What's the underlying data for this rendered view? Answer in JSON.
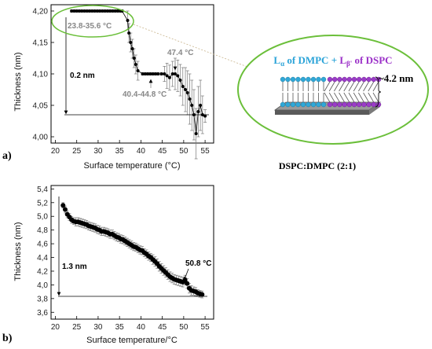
{
  "panel_labels": {
    "a": "a)",
    "b": "b)"
  },
  "inset": {
    "title_parts": {
      "p1": "L",
      "p1_sub": "α",
      "p2": " of DMPC + ",
      "p3": "L",
      "p3_sub": "β'",
      "p4": " of DSPC"
    },
    "thickness_label": "~4.2 nm",
    "caption": "DSPC:DMPC (2:1)",
    "colors": {
      "dmpc": "#2fa8d8",
      "dspc": "#9b3cc8",
      "circle": "#6bbf3a",
      "title_blue": "#2aa3d8",
      "title_purple": "#9b30c8"
    }
  },
  "chart_data": [
    {
      "type": "scatter",
      "xlabel": "Surface temperature (°C)",
      "ylabel": "Thickness (nm)",
      "xlim": [
        19,
        57
      ],
      "ylim": [
        3.99,
        4.21
      ],
      "xticks": [
        20,
        25,
        30,
        35,
        40,
        45,
        50,
        55
      ],
      "yticks": [
        4.0,
        4.05,
        4.1,
        4.15,
        4.2
      ],
      "ytick_labels": [
        "4,00",
        "4,05",
        "4,10",
        "4,15",
        "4,20"
      ],
      "grid": false,
      "points": [
        {
          "x": 23.8,
          "y": 4.2,
          "e": 0.002
        },
        {
          "x": 24.4,
          "y": 4.2,
          "e": 0.002
        },
        {
          "x": 25.0,
          "y": 4.2,
          "e": 0.002
        },
        {
          "x": 25.6,
          "y": 4.2,
          "e": 0.002
        },
        {
          "x": 26.2,
          "y": 4.2,
          "e": 0.002
        },
        {
          "x": 26.8,
          "y": 4.2,
          "e": 0.002
        },
        {
          "x": 27.4,
          "y": 4.2,
          "e": 0.002
        },
        {
          "x": 28.0,
          "y": 4.2,
          "e": 0.002
        },
        {
          "x": 28.6,
          "y": 4.2,
          "e": 0.002
        },
        {
          "x": 29.2,
          "y": 4.2,
          "e": 0.002
        },
        {
          "x": 29.8,
          "y": 4.2,
          "e": 0.002
        },
        {
          "x": 30.4,
          "y": 4.2,
          "e": 0.002
        },
        {
          "x": 31.0,
          "y": 4.2,
          "e": 0.002
        },
        {
          "x": 31.6,
          "y": 4.2,
          "e": 0.002
        },
        {
          "x": 32.2,
          "y": 4.2,
          "e": 0.002
        },
        {
          "x": 32.8,
          "y": 4.2,
          "e": 0.002
        },
        {
          "x": 33.4,
          "y": 4.2,
          "e": 0.002
        },
        {
          "x": 34.0,
          "y": 4.2,
          "e": 0.002
        },
        {
          "x": 34.6,
          "y": 4.2,
          "e": 0.002
        },
        {
          "x": 35.2,
          "y": 4.2,
          "e": 0.002
        },
        {
          "x": 35.6,
          "y": 4.2,
          "e": 0.002
        },
        {
          "x": 36.9,
          "y": 4.185,
          "e": 0.015
        },
        {
          "x": 37.2,
          "y": 4.165,
          "e": 0.015
        },
        {
          "x": 37.6,
          "y": 4.15,
          "e": 0.015
        },
        {
          "x": 38.0,
          "y": 4.14,
          "e": 0.015
        },
        {
          "x": 38.4,
          "y": 4.125,
          "e": 0.015
        },
        {
          "x": 38.8,
          "y": 4.115,
          "e": 0.015
        },
        {
          "x": 39.3,
          "y": 4.105,
          "e": 0.015
        },
        {
          "x": 40.4,
          "y": 4.1,
          "e": 0.002
        },
        {
          "x": 41.0,
          "y": 4.1,
          "e": 0.002
        },
        {
          "x": 41.6,
          "y": 4.1,
          "e": 0.002
        },
        {
          "x": 42.2,
          "y": 4.1,
          "e": 0.002
        },
        {
          "x": 42.8,
          "y": 4.1,
          "e": 0.002
        },
        {
          "x": 43.4,
          "y": 4.1,
          "e": 0.002
        },
        {
          "x": 44.0,
          "y": 4.1,
          "e": 0.002
        },
        {
          "x": 44.8,
          "y": 4.1,
          "e": 0.002
        },
        {
          "x": 45.5,
          "y": 4.1,
          "e": 0.012
        },
        {
          "x": 46.1,
          "y": 4.097,
          "e": 0.02
        },
        {
          "x": 46.7,
          "y": 4.094,
          "e": 0.02
        },
        {
          "x": 47.4,
          "y": 4.1,
          "e": 0.02
        },
        {
          "x": 48.0,
          "y": 4.1,
          "e": 0.025
        },
        {
          "x": 48.6,
          "y": 4.097,
          "e": 0.025
        },
        {
          "x": 49.2,
          "y": 4.09,
          "e": 0.025
        },
        {
          "x": 49.8,
          "y": 4.08,
          "e": 0.03
        },
        {
          "x": 50.4,
          "y": 4.075,
          "e": 0.035
        },
        {
          "x": 50.9,
          "y": 4.07,
          "e": 0.035
        },
        {
          "x": 51.4,
          "y": 4.06,
          "e": 0.04
        },
        {
          "x": 51.9,
          "y": 4.05,
          "e": 0.04
        },
        {
          "x": 52.4,
          "y": 4.035,
          "e": 0.04
        },
        {
          "x": 52.9,
          "y": 4.005,
          "e": 0.04
        },
        {
          "x": 53.4,
          "y": 4.04,
          "e": 0.04
        },
        {
          "x": 53.9,
          "y": 4.05,
          "e": 0.04
        },
        {
          "x": 54.4,
          "y": 4.035,
          "e": 0.03
        },
        {
          "x": 55.0,
          "y": 4.033,
          "e": 0.01
        }
      ],
      "annotations": {
        "range1": "23.8-35.6 °C",
        "range2": "40.4-44.8 °C",
        "temp": "47.4 °C",
        "delta": "0.2 nm"
      }
    },
    {
      "type": "scatter",
      "xlabel": "Surface temperature/°C",
      "ylabel": "Thickness (nm)",
      "xlim": [
        19,
        57
      ],
      "ylim": [
        3.5,
        5.45
      ],
      "xticks": [
        20,
        25,
        30,
        35,
        40,
        45,
        50,
        55
      ],
      "yticks": [
        3.6,
        3.8,
        4.0,
        4.2,
        4.4,
        4.6,
        4.8,
        5.0,
        5.2,
        5.4
      ],
      "ytick_labels": [
        "3,6",
        "3,8",
        "4,0",
        "4,2",
        "4,4",
        "4,6",
        "4,8",
        "5,0",
        "5,2",
        "5,4"
      ],
      "grid": false,
      "points": [
        {
          "x": 21.8,
          "y": 5.16,
          "e": 0.04
        },
        {
          "x": 22.3,
          "y": 5.1,
          "e": 0.05
        },
        {
          "x": 22.8,
          "y": 5.03,
          "e": 0.05
        },
        {
          "x": 23.3,
          "y": 4.99,
          "e": 0.05
        },
        {
          "x": 23.8,
          "y": 4.95,
          "e": 0.05
        },
        {
          "x": 24.3,
          "y": 4.93,
          "e": 0.05
        },
        {
          "x": 24.8,
          "y": 4.92,
          "e": 0.06
        },
        {
          "x": 25.3,
          "y": 4.92,
          "e": 0.06
        },
        {
          "x": 25.8,
          "y": 4.91,
          "e": 0.06
        },
        {
          "x": 26.3,
          "y": 4.9,
          "e": 0.06
        },
        {
          "x": 26.8,
          "y": 4.89,
          "e": 0.06
        },
        {
          "x": 27.3,
          "y": 4.88,
          "e": 0.06
        },
        {
          "x": 27.8,
          "y": 4.86,
          "e": 0.06
        },
        {
          "x": 28.3,
          "y": 4.85,
          "e": 0.06
        },
        {
          "x": 28.8,
          "y": 4.84,
          "e": 0.06
        },
        {
          "x": 29.3,
          "y": 4.83,
          "e": 0.06
        },
        {
          "x": 29.8,
          "y": 4.81,
          "e": 0.06
        },
        {
          "x": 30.3,
          "y": 4.8,
          "e": 0.06
        },
        {
          "x": 30.8,
          "y": 4.78,
          "e": 0.06
        },
        {
          "x": 31.3,
          "y": 4.78,
          "e": 0.06
        },
        {
          "x": 31.8,
          "y": 4.77,
          "e": 0.06
        },
        {
          "x": 32.3,
          "y": 4.76,
          "e": 0.06
        },
        {
          "x": 32.8,
          "y": 4.74,
          "e": 0.06
        },
        {
          "x": 33.3,
          "y": 4.74,
          "e": 0.06
        },
        {
          "x": 33.8,
          "y": 4.72,
          "e": 0.06
        },
        {
          "x": 34.3,
          "y": 4.7,
          "e": 0.06
        },
        {
          "x": 34.8,
          "y": 4.69,
          "e": 0.06
        },
        {
          "x": 35.3,
          "y": 4.67,
          "e": 0.06
        },
        {
          "x": 35.8,
          "y": 4.66,
          "e": 0.06
        },
        {
          "x": 36.3,
          "y": 4.64,
          "e": 0.06
        },
        {
          "x": 36.8,
          "y": 4.62,
          "e": 0.06
        },
        {
          "x": 37.3,
          "y": 4.6,
          "e": 0.06
        },
        {
          "x": 37.8,
          "y": 4.58,
          "e": 0.06
        },
        {
          "x": 38.3,
          "y": 4.56,
          "e": 0.06
        },
        {
          "x": 38.8,
          "y": 4.55,
          "e": 0.06
        },
        {
          "x": 39.3,
          "y": 4.53,
          "e": 0.06
        },
        {
          "x": 39.8,
          "y": 4.51,
          "e": 0.06
        },
        {
          "x": 40.3,
          "y": 4.5,
          "e": 0.06
        },
        {
          "x": 40.8,
          "y": 4.47,
          "e": 0.06
        },
        {
          "x": 41.3,
          "y": 4.45,
          "e": 0.06
        },
        {
          "x": 41.8,
          "y": 4.42,
          "e": 0.06
        },
        {
          "x": 42.3,
          "y": 4.4,
          "e": 0.06
        },
        {
          "x": 42.8,
          "y": 4.37,
          "e": 0.07
        },
        {
          "x": 43.3,
          "y": 4.34,
          "e": 0.07
        },
        {
          "x": 43.8,
          "y": 4.31,
          "e": 0.07
        },
        {
          "x": 44.3,
          "y": 4.27,
          "e": 0.07
        },
        {
          "x": 44.8,
          "y": 4.24,
          "e": 0.07
        },
        {
          "x": 45.3,
          "y": 4.21,
          "e": 0.07
        },
        {
          "x": 45.8,
          "y": 4.18,
          "e": 0.07
        },
        {
          "x": 46.3,
          "y": 4.15,
          "e": 0.07
        },
        {
          "x": 46.8,
          "y": 4.12,
          "e": 0.07
        },
        {
          "x": 47.3,
          "y": 4.1,
          "e": 0.07
        },
        {
          "x": 47.8,
          "y": 4.08,
          "e": 0.07
        },
        {
          "x": 48.3,
          "y": 4.07,
          "e": 0.07
        },
        {
          "x": 48.8,
          "y": 4.06,
          "e": 0.07
        },
        {
          "x": 49.3,
          "y": 4.05,
          "e": 0.07
        },
        {
          "x": 49.8,
          "y": 4.04,
          "e": 0.07
        },
        {
          "x": 50.3,
          "y": 4.07,
          "e": 0.07
        },
        {
          "x": 50.8,
          "y": 4.02,
          "e": 0.07
        },
        {
          "x": 51.3,
          "y": 3.95,
          "e": 0.07
        },
        {
          "x": 51.8,
          "y": 3.92,
          "e": 0.07
        },
        {
          "x": 52.3,
          "y": 3.91,
          "e": 0.06
        },
        {
          "x": 52.8,
          "y": 3.9,
          "e": 0.06
        },
        {
          "x": 53.3,
          "y": 3.88,
          "e": 0.05
        },
        {
          "x": 53.8,
          "y": 3.87,
          "e": 0.05
        },
        {
          "x": 54.3,
          "y": 3.86,
          "e": 0.05
        }
      ],
      "annotations": {
        "delta": "1.3 nm",
        "temp": "50.8 °C"
      }
    }
  ]
}
